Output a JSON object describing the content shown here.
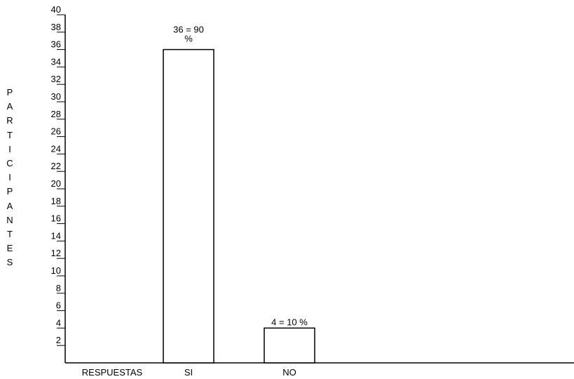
{
  "chart_data": {
    "type": "bar",
    "title": "",
    "ylabel": "PARTICIPANTES",
    "xlabel": "",
    "x_axis_first_label": "RESPUESTAS",
    "categories": [
      "SI",
      "NO"
    ],
    "values": [
      36,
      4
    ],
    "data_labels": [
      "36 = 90 %",
      "4 = 10 %"
    ],
    "ylim": [
      0,
      40
    ],
    "yticks": [
      2,
      4,
      6,
      8,
      10,
      12,
      14,
      16,
      18,
      20,
      22,
      24,
      26,
      28,
      30,
      32,
      34,
      36,
      38,
      40
    ],
    "bar_fill": "#ffffff",
    "bar_stroke": "#000000",
    "grid": false,
    "legend": "none"
  }
}
